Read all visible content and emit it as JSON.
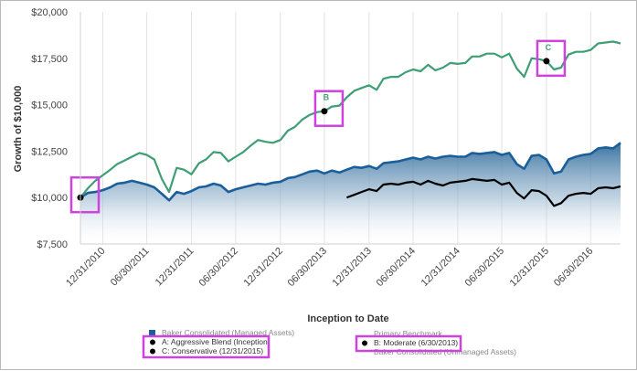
{
  "chart_data": {
    "type": "area",
    "xlabel": "Inception to Date",
    "ylabel": "Growth of $10,000",
    "ylim": [
      7500,
      20000
    ],
    "yticks": [
      "$7,500",
      "$10,000",
      "$12,500",
      "$15,000",
      "$17,500",
      "$20,000"
    ],
    "ytick_values": [
      7500,
      10000,
      12500,
      15000,
      17500,
      20000
    ],
    "xticks": [
      "12/31/2010",
      "06/30/2011",
      "12/31/2011",
      "06/30/2012",
      "12/31/2012",
      "06/30/2013",
      "12/31/2013",
      "06/30/2014",
      "12/31/2014",
      "06/30/2015",
      "12/31/2015",
      "06/30/2016"
    ],
    "grid": "vertical",
    "series": [
      {
        "name": "Baker Consolidated (Managed Assets)",
        "style": "area",
        "color": "#1b5f9a",
        "x": [
          "09/30/2010",
          "10/31/2010",
          "11/30/2010",
          "12/31/2010",
          "01/31/2011",
          "02/28/2011",
          "03/31/2011",
          "04/30/2011",
          "05/31/2011",
          "06/30/2011",
          "07/31/2011",
          "08/31/2011",
          "09/30/2011",
          "10/31/2011",
          "11/30/2011",
          "12/31/2011",
          "01/31/2012",
          "02/29/2012",
          "03/31/2012",
          "04/30/2012",
          "05/31/2012",
          "06/30/2012",
          "07/31/2012",
          "08/31/2012",
          "09/30/2012",
          "10/31/2012",
          "11/30/2012",
          "12/31/2012",
          "01/31/2013",
          "02/28/2013",
          "03/31/2013",
          "04/30/2013",
          "05/31/2013",
          "06/30/2013",
          "07/31/2013",
          "08/31/2013",
          "09/30/2013",
          "10/31/2013",
          "11/30/2013",
          "12/31/2013",
          "01/31/2014",
          "02/28/2014",
          "03/31/2014",
          "04/30/2014",
          "05/31/2014",
          "06/30/2014",
          "07/31/2014",
          "08/31/2014",
          "09/30/2014",
          "10/31/2014",
          "11/30/2014",
          "12/31/2014",
          "01/31/2015",
          "02/28/2015",
          "03/31/2015",
          "04/30/2015",
          "05/31/2015",
          "06/30/2015",
          "07/31/2015",
          "08/31/2015",
          "09/30/2015",
          "10/31/2015",
          "11/30/2015",
          "12/31/2015",
          "01/31/2016",
          "02/29/2016",
          "03/31/2016",
          "04/30/2016",
          "05/31/2016",
          "06/30/2016",
          "07/31/2016",
          "08/31/2016",
          "09/30/2016",
          "10/31/2016"
        ],
        "values": [
          10000,
          10250,
          10300,
          10400,
          10550,
          10750,
          10800,
          10900,
          10800,
          10700,
          10550,
          10200,
          9850,
          10300,
          10200,
          10350,
          10550,
          10600,
          10750,
          10650,
          10300,
          10450,
          10550,
          10650,
          10750,
          10700,
          10800,
          10850,
          11050,
          11100,
          11250,
          11400,
          11450,
          11300,
          11450,
          11350,
          11500,
          11650,
          11600,
          11700,
          11550,
          11850,
          11900,
          11950,
          12050,
          12150,
          12050,
          12200,
          12100,
          12200,
          12250,
          12200,
          12200,
          12400,
          12350,
          12400,
          12450,
          12300,
          12400,
          11800,
          11550,
          12250,
          12300,
          12050,
          11300,
          11400,
          12050,
          12200,
          12300,
          12350,
          12650,
          12700,
          12650,
          12950
        ]
      },
      {
        "name": "A: Aggressive Blend (Inception)",
        "style": "line",
        "color": "#3e9e74",
        "x": [
          "09/30/2010",
          "10/31/2010",
          "11/30/2010",
          "12/31/2010",
          "01/31/2011",
          "02/28/2011",
          "03/31/2011",
          "04/30/2011",
          "05/31/2011",
          "06/30/2011",
          "07/31/2011",
          "08/31/2011",
          "09/30/2011",
          "10/31/2011",
          "11/30/2011",
          "12/31/2011",
          "01/31/2012",
          "02/29/2012",
          "03/31/2012",
          "04/30/2012",
          "05/31/2012",
          "06/30/2012",
          "07/31/2012",
          "08/31/2012",
          "09/30/2012",
          "10/31/2012",
          "11/30/2012",
          "12/31/2012",
          "01/31/2013",
          "02/28/2013",
          "03/31/2013",
          "04/30/2013",
          "05/31/2013",
          "06/30/2013",
          "07/31/2013",
          "08/31/2013",
          "09/30/2013",
          "10/31/2013",
          "11/30/2013",
          "12/31/2013",
          "01/31/2014",
          "02/28/2014",
          "03/31/2014",
          "04/30/2014",
          "05/31/2014",
          "06/30/2014",
          "07/31/2014",
          "08/31/2014",
          "09/30/2014",
          "10/31/2014",
          "11/30/2014",
          "12/31/2014",
          "01/31/2015",
          "02/28/2015",
          "03/31/2015",
          "04/30/2015",
          "05/31/2015",
          "06/30/2015",
          "07/31/2015",
          "08/31/2015",
          "09/30/2015",
          "10/31/2015",
          "11/30/2015",
          "12/31/2015",
          "01/31/2016",
          "02/29/2016",
          "03/31/2016",
          "04/30/2016",
          "05/31/2016",
          "06/30/2016",
          "07/31/2016",
          "08/31/2016",
          "09/30/2016",
          "10/31/2016"
        ],
        "values": [
          10000,
          10500,
          10900,
          11200,
          11500,
          11800,
          12000,
          12200,
          12400,
          12300,
          12050,
          11000,
          10300,
          11600,
          11500,
          11250,
          11850,
          12050,
          12450,
          12400,
          11950,
          12200,
          12450,
          12800,
          13100,
          13000,
          12950,
          13100,
          13600,
          13800,
          14200,
          14450,
          14600,
          14650,
          14900,
          14950,
          15400,
          15750,
          15900,
          16050,
          15800,
          16400,
          16500,
          16500,
          16750,
          16900,
          16800,
          17150,
          16850,
          17000,
          17250,
          17200,
          17250,
          17600,
          17600,
          17750,
          17750,
          17550,
          17750,
          16950,
          16500,
          17500,
          17450,
          17350,
          16900,
          17000,
          17700,
          17850,
          17850,
          17950,
          18300,
          18350,
          18400,
          18300
        ]
      },
      {
        "name": "B: Moderate (6/30/2013)",
        "style": "line",
        "color": "#000000",
        "x": [
          "09/30/2013",
          "10/31/2013",
          "11/30/2013",
          "12/31/2013",
          "01/31/2014",
          "02/28/2014",
          "03/31/2014",
          "04/30/2014",
          "05/31/2014",
          "06/30/2014",
          "07/31/2014",
          "08/31/2014",
          "09/30/2014",
          "10/31/2014",
          "11/30/2014",
          "12/31/2014",
          "01/31/2015",
          "02/28/2015",
          "03/31/2015",
          "04/30/2015",
          "05/31/2015",
          "06/30/2015",
          "07/31/2015",
          "08/31/2015",
          "09/30/2015",
          "10/31/2015",
          "11/30/2015",
          "12/31/2015",
          "01/31/2016",
          "02/29/2016",
          "03/31/2016",
          "04/30/2016",
          "05/31/2016",
          "06/30/2016",
          "07/31/2016",
          "08/31/2016",
          "09/30/2016",
          "10/31/2016"
        ],
        "values": [
          10000,
          10150,
          10300,
          10450,
          10350,
          10700,
          10750,
          10700,
          10800,
          10850,
          10700,
          10900,
          10750,
          10650,
          10800,
          10850,
          10900,
          11000,
          10950,
          10900,
          10950,
          10700,
          10800,
          10250,
          9950,
          10400,
          10350,
          10100,
          9550,
          9700,
          10100,
          10200,
          10250,
          10200,
          10500,
          10550,
          10500,
          10600
        ]
      },
      {
        "name": "C: Conservative (12/31/2015)",
        "style": "marker",
        "color": "#000000"
      },
      {
        "name": "Baker Consolidated (Unmanaged Assets)",
        "style": "legend-only",
        "color": "#bbbbbb"
      },
      {
        "name": "Primary Benchmark",
        "style": "legend-only",
        "color": "#bbbbbb"
      }
    ],
    "markers": [
      {
        "label": "A",
        "x": "09/30/2010",
        "y": 10000,
        "letter": ""
      },
      {
        "label": "B",
        "x": "06/30/2013",
        "y": 14650,
        "letter": "B"
      },
      {
        "label": "C",
        "x": "12/31/2015",
        "y": 17350,
        "letter": "C"
      }
    ],
    "legend": {
      "placement": "bottom",
      "items": [
        {
          "label": "Baker Consolidated (Managed Assets)",
          "symbol": "square",
          "color": "#1b5f9a",
          "faint": true
        },
        {
          "label": "A: Aggressive Blend (Inception)",
          "symbol": "dot",
          "color": "#000000",
          "faint": false
        },
        {
          "label": "C: Conservative (12/31/2015)",
          "symbol": "dot",
          "color": "#000000",
          "faint": false
        },
        {
          "label": "Primary Benchmark",
          "symbol": "none",
          "color": "#bbbbbb",
          "faint": true
        },
        {
          "label": "B: Moderate (6/30/2013)",
          "symbol": "dot",
          "color": "#000000",
          "faint": false
        },
        {
          "label": "Baker Consolidated (Unmanaged Assets)",
          "symbol": "none",
          "color": "#bbbbbb",
          "faint": true
        }
      ]
    },
    "highlight_color": "#cc44dd"
  }
}
